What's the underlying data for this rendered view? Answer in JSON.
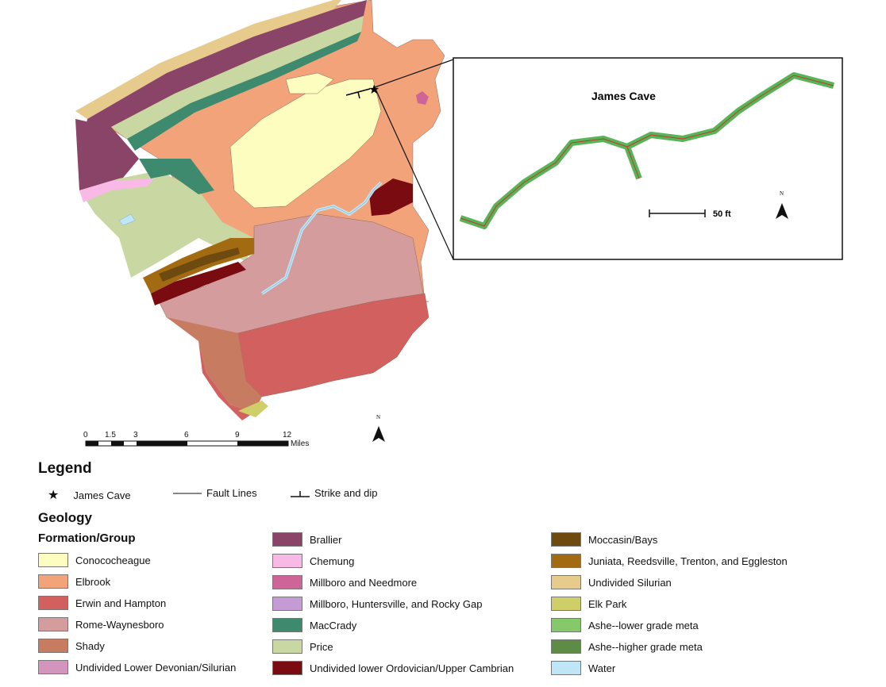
{
  "inset": {
    "title": "James Cave",
    "scale_label": "50 ft",
    "north_label": "N"
  },
  "map": {
    "north_label": "N",
    "scale": {
      "ticks": [
        "0",
        "1.5",
        "3",
        "6",
        "9",
        "12"
      ],
      "unit": "Miles"
    }
  },
  "legend": {
    "title": "Legend",
    "symbols": {
      "cave": "James Cave",
      "fault": "Fault Lines",
      "strike": "Strike and dip"
    },
    "geology_title": "Geology",
    "group_title": "Formation/Group",
    "formations": [
      {
        "name": "Conococheague",
        "color": "#fdfdc0"
      },
      {
        "name": "Elbrook",
        "color": "#f2a37a"
      },
      {
        "name": "Erwin and Hampton",
        "color": "#d2605f"
      },
      {
        "name": "Rome-Waynesboro",
        "color": "#d49c9c"
      },
      {
        "name": "Shady",
        "color": "#c77b60"
      },
      {
        "name": "Undivided Lower Devonian/Silurian",
        "color": "#d394bd"
      },
      {
        "name": "Brallier",
        "color": "#8a4468"
      },
      {
        "name": "Chemung",
        "color": "#f8b9e6"
      },
      {
        "name": "Millboro and Needmore",
        "color": "#cd6598"
      },
      {
        "name": "Millboro, Huntersville, and Rocky Gap",
        "color": "#c59bd6"
      },
      {
        "name": "MacCrady",
        "color": "#3e8a6f"
      },
      {
        "name": "Price",
        "color": "#c9d8a3"
      },
      {
        "name": "Undivided lower Ordovician/Upper Cambrian",
        "color": "#7a0b10"
      },
      {
        "name": "Moccasin/Bays",
        "color": "#6e4a10"
      },
      {
        "name": "Juniata, Reedsville, Trenton, and Eggleston",
        "color": "#a26b12"
      },
      {
        "name": "Undivided Silurian",
        "color": "#e7cb8c"
      },
      {
        "name": "Elk Park",
        "color": "#cfcf6a"
      },
      {
        "name": "Ashe--lower grade meta",
        "color": "#86c96b"
      },
      {
        "name": "Ashe--higher grade meta",
        "color": "#5e8c46"
      },
      {
        "name": "Water",
        "color": "#bfe6f7"
      }
    ]
  }
}
